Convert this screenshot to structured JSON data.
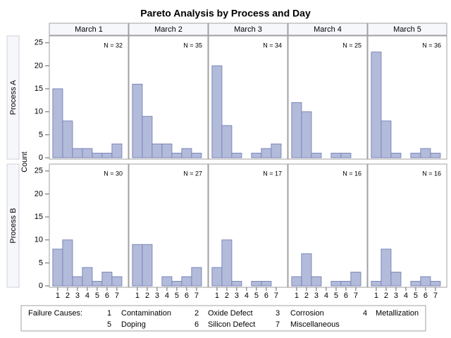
{
  "chart_data": {
    "type": "bar",
    "title": "Pareto Analysis by Process and Day",
    "ylabel": "Count",
    "ylim": [
      0,
      26.5
    ],
    "yticks": [
      0,
      5,
      10,
      15,
      20,
      25
    ],
    "categories": [
      1,
      2,
      3,
      4,
      5,
      6,
      7
    ],
    "columns": [
      "March 1",
      "March 2",
      "March 3",
      "March 4",
      "March 5"
    ],
    "color": "#b3bbdb",
    "edge_color": "#7c87b8",
    "rows": [
      {
        "name": "Process A",
        "panels": [
          {
            "annotation": "N = 32",
            "values": [
              15,
              8,
              2,
              2,
              1,
              1,
              3
            ]
          },
          {
            "annotation": "N = 35",
            "values": [
              16,
              9,
              3,
              3,
              1,
              2,
              1
            ]
          },
          {
            "annotation": "N = 34",
            "values": [
              20,
              7,
              1,
              0,
              1,
              2,
              3
            ]
          },
          {
            "annotation": "N = 25",
            "values": [
              12,
              10,
              1,
              0,
              1,
              1,
              0
            ]
          },
          {
            "annotation": "N = 36",
            "values": [
              23,
              8,
              1,
              0,
              1,
              2,
              1
            ]
          }
        ]
      },
      {
        "name": "Process B",
        "panels": [
          {
            "annotation": "N = 30",
            "values": [
              8,
              10,
              2,
              4,
              1,
              3,
              2
            ]
          },
          {
            "annotation": "N = 27",
            "values": [
              9,
              9,
              0,
              2,
              1,
              2,
              4
            ]
          },
          {
            "annotation": "N = 17",
            "values": [
              4,
              10,
              1,
              0,
              1,
              1,
              0
            ]
          },
          {
            "annotation": "N = 16",
            "values": [
              2,
              7,
              2,
              0,
              1,
              1,
              3
            ]
          },
          {
            "annotation": "N = 16",
            "values": [
              1,
              8,
              3,
              0,
              1,
              2,
              1
            ]
          }
        ]
      }
    ],
    "legend": {
      "title": "Failure Causes:",
      "items": [
        "Contamination",
        "Oxide Defect",
        "Corrosion",
        "Metallization",
        "Doping",
        "Silicon Defect",
        "Miscellaneous"
      ]
    }
  }
}
